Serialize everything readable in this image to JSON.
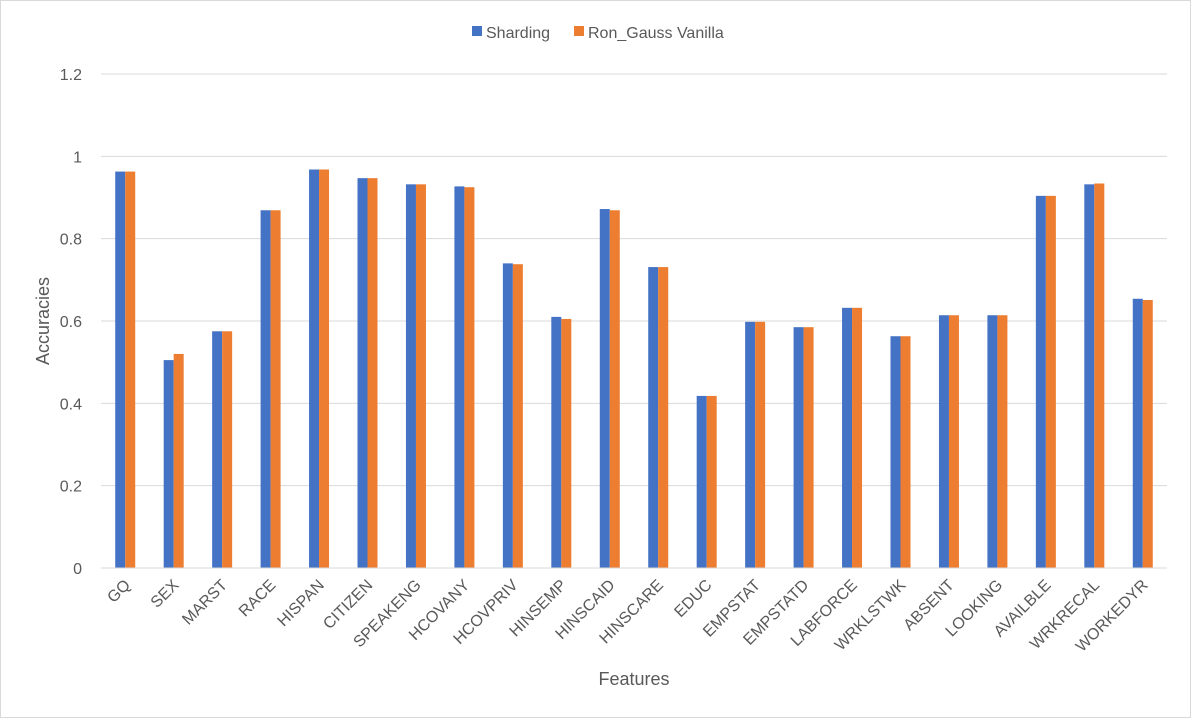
{
  "chart_data": {
    "type": "bar",
    "title": "",
    "xlabel": "Features",
    "ylabel": "Accuracies",
    "ylim": [
      0,
      1.2
    ],
    "yticks": [
      0,
      0.2,
      0.4,
      0.6,
      0.8,
      1,
      1.2
    ],
    "ytick_labels": [
      "0",
      "0.2",
      "0.4",
      "0.6",
      "0.8",
      "1",
      "1.2"
    ],
    "grid": true,
    "legend_position": "top",
    "categories": [
      "GQ",
      "SEX",
      "MARST",
      "RACE",
      "HISPAN",
      "CITIZEN",
      "SPEAKENG",
      "HCOVANY",
      "HCOVPRIV",
      "HINSEMP",
      "HINSCAID",
      "HINSCARE",
      "EDUC",
      "EMPSTAT",
      "EMPSTATD",
      "LABFORCE",
      "WRKLSTWK",
      "ABSENT",
      "LOOKING",
      "AVAILBLE",
      "WRKRECAL",
      "WORKEDYR"
    ],
    "series": [
      {
        "name": "Sharding",
        "color": "#4472c4",
        "values": [
          0.963,
          0.505,
          0.575,
          0.869,
          0.968,
          0.947,
          0.932,
          0.927,
          0.74,
          0.61,
          0.872,
          0.731,
          0.418,
          0.598,
          0.585,
          0.632,
          0.563,
          0.614,
          0.614,
          0.904,
          0.932,
          0.654
        ]
      },
      {
        "name": "Ron_Gauss Vanilla",
        "color": "#ed7d31",
        "values": [
          0.963,
          0.52,
          0.575,
          0.869,
          0.968,
          0.947,
          0.932,
          0.925,
          0.738,
          0.605,
          0.869,
          0.731,
          0.418,
          0.598,
          0.585,
          0.632,
          0.563,
          0.614,
          0.614,
          0.904,
          0.934,
          0.651
        ]
      }
    ]
  }
}
